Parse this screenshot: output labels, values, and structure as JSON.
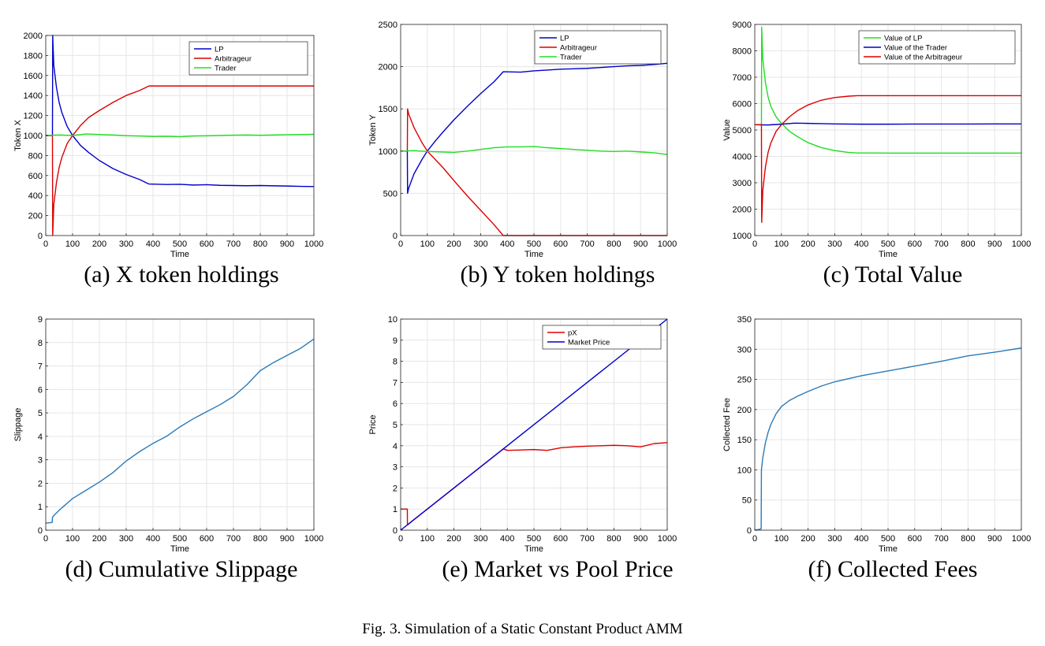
{
  "figure_caption": "Fig. 3.  Simulation of a Static Constant Product AMM",
  "chart_data": [
    {
      "id": "a",
      "caption": "(a) X token holdings",
      "type": "line",
      "xlabel": "Time",
      "ylabel": "Token X",
      "xlim": [
        0,
        1000
      ],
      "ylim": [
        0,
        2000
      ],
      "xticks": [
        0,
        100,
        200,
        300,
        400,
        500,
        600,
        700,
        800,
        900,
        1000
      ],
      "yticks": [
        0,
        200,
        400,
        600,
        800,
        1000,
        1200,
        1400,
        1600,
        1800,
        2000
      ],
      "grid": true,
      "legend_position": "top-right",
      "series": [
        {
          "name": "LP",
          "color": "#0000cc",
          "x": [
            0,
            25,
            26,
            30,
            40,
            50,
            60,
            80,
            100,
            130,
            160,
            200,
            250,
            300,
            350,
            385,
            450,
            500,
            550,
            600,
            650,
            700,
            750,
            800,
            850,
            900,
            950,
            1000
          ],
          "y": [
            1000,
            1000,
            2000,
            1700,
            1480,
            1330,
            1230,
            1090,
            1000,
            900,
            830,
            750,
            670,
            610,
            560,
            515,
            510,
            512,
            505,
            508,
            502,
            500,
            498,
            500,
            497,
            495,
            492,
            490
          ]
        },
        {
          "name": "Arbitrageur",
          "color": "#dd0000",
          "x": [
            0,
            25,
            26,
            30,
            40,
            50,
            60,
            80,
            100,
            130,
            160,
            200,
            250,
            300,
            350,
            385,
            450,
            500,
            600,
            700,
            800,
            900,
            1000
          ],
          "y": [
            1000,
            1000,
            0,
            310,
            530,
            680,
            780,
            920,
            1000,
            1100,
            1180,
            1250,
            1330,
            1400,
            1450,
            1495,
            1495,
            1495,
            1495,
            1495,
            1495,
            1495,
            1495
          ]
        },
        {
          "name": "Trader",
          "color": "#22dd22",
          "x": [
            0,
            50,
            100,
            150,
            200,
            250,
            300,
            350,
            400,
            450,
            500,
            550,
            600,
            650,
            700,
            750,
            800,
            850,
            900,
            950,
            1000
          ],
          "y": [
            1000,
            1005,
            1000,
            1015,
            1010,
            1005,
            998,
            995,
            990,
            992,
            988,
            995,
            997,
            1000,
            1003,
            1005,
            1002,
            1005,
            1008,
            1010,
            1012
          ]
        }
      ]
    },
    {
      "id": "b",
      "caption": "(b) Y token holdings",
      "type": "line",
      "xlabel": "Time",
      "ylabel": "Token Y",
      "xlim": [
        0,
        1000
      ],
      "ylim": [
        0,
        2500
      ],
      "xticks": [
        0,
        100,
        200,
        300,
        400,
        500,
        600,
        700,
        800,
        900,
        1000
      ],
      "yticks": [
        0,
        500,
        1000,
        1500,
        2000,
        2500
      ],
      "grid": true,
      "legend_position": "top-right",
      "series": [
        {
          "name": "LP",
          "color": "#0000cc",
          "x": [
            0,
            25,
            26,
            30,
            50,
            80,
            100,
            130,
            160,
            200,
            250,
            300,
            350,
            385,
            450,
            500,
            550,
            600,
            650,
            700,
            750,
            800,
            850,
            900,
            950,
            1000
          ],
          "y": [
            1000,
            1000,
            500,
            560,
            730,
            900,
            1000,
            1120,
            1230,
            1370,
            1530,
            1680,
            1820,
            1940,
            1935,
            1950,
            1960,
            1970,
            1975,
            1980,
            1990,
            2000,
            2010,
            2015,
            2025,
            2040
          ]
        },
        {
          "name": "Arbitrageur",
          "color": "#dd0000",
          "x": [
            0,
            25,
            26,
            30,
            50,
            80,
            100,
            130,
            160,
            200,
            250,
            300,
            350,
            385,
            400,
            500,
            600,
            700,
            800,
            900,
            1000
          ],
          "y": [
            1000,
            1000,
            1500,
            1440,
            1280,
            1100,
            1000,
            900,
            800,
            650,
            470,
            300,
            130,
            0,
            0,
            0,
            0,
            0,
            0,
            0,
            0
          ]
        },
        {
          "name": "Trader",
          "color": "#22dd22",
          "x": [
            0,
            50,
            100,
            150,
            200,
            250,
            300,
            350,
            400,
            450,
            500,
            550,
            600,
            650,
            700,
            750,
            800,
            850,
            900,
            950,
            1000
          ],
          "y": [
            1000,
            1005,
            995,
            990,
            985,
            1000,
            1020,
            1040,
            1050,
            1050,
            1055,
            1040,
            1030,
            1020,
            1010,
            1000,
            995,
            1000,
            990,
            980,
            960
          ]
        }
      ]
    },
    {
      "id": "c",
      "caption": "(c) Total Value",
      "type": "line",
      "xlabel": "Time",
      "ylabel": "Value",
      "xlim": [
        0,
        1000
      ],
      "ylim": [
        1000,
        9000
      ],
      "xticks": [
        0,
        100,
        200,
        300,
        400,
        500,
        600,
        700,
        800,
        900,
        1000
      ],
      "yticks": [
        1000,
        2000,
        3000,
        4000,
        5000,
        6000,
        7000,
        8000,
        9000
      ],
      "grid": true,
      "legend_position": "top-right",
      "series": [
        {
          "name": "Value of LP",
          "color": "#22dd22",
          "x": [
            0,
            25,
            26,
            30,
            40,
            50,
            60,
            80,
            100,
            130,
            160,
            200,
            250,
            300,
            350,
            385,
            450,
            500,
            600,
            700,
            800,
            900,
            1000
          ],
          "y": [
            5200,
            5200,
            8900,
            7700,
            6800,
            6250,
            5900,
            5500,
            5250,
            4950,
            4750,
            4520,
            4330,
            4220,
            4150,
            4130,
            4130,
            4125,
            4125,
            4125,
            4125,
            4125,
            4125
          ]
        },
        {
          "name": "Value of the Trader",
          "color": "#0000cc",
          "x": [
            0,
            50,
            100,
            150,
            200,
            250,
            300,
            400,
            500,
            600,
            700,
            800,
            900,
            1000
          ],
          "y": [
            5200,
            5190,
            5220,
            5260,
            5250,
            5240,
            5230,
            5220,
            5220,
            5225,
            5225,
            5225,
            5230,
            5230
          ]
        },
        {
          "name": "Value of the Arbitrageur",
          "color": "#dd0000",
          "x": [
            0,
            25,
            26,
            30,
            40,
            50,
            60,
            80,
            100,
            130,
            160,
            200,
            250,
            300,
            350,
            385,
            450,
            500,
            600,
            700,
            800,
            900,
            1000
          ],
          "y": [
            5200,
            5200,
            1500,
            2700,
            3600,
            4150,
            4500,
            4950,
            5200,
            5500,
            5730,
            5950,
            6130,
            6230,
            6280,
            6300,
            6300,
            6300,
            6300,
            6300,
            6300,
            6300,
            6300
          ]
        }
      ]
    },
    {
      "id": "d",
      "caption": "(d) Cumulative Slippage",
      "type": "line",
      "xlabel": "Time",
      "ylabel": "Slippage",
      "xlim": [
        0,
        1000
      ],
      "ylim": [
        0,
        9
      ],
      "xticks": [
        0,
        100,
        200,
        300,
        400,
        500,
        600,
        700,
        800,
        900,
        1000
      ],
      "yticks": [
        0,
        1,
        2,
        3,
        4,
        5,
        6,
        7,
        8,
        9
      ],
      "grid": true,
      "series": [
        {
          "name": "",
          "color": "#2a7ab8",
          "x": [
            0,
            24,
            25,
            30,
            50,
            100,
            150,
            200,
            250,
            300,
            350,
            400,
            450,
            500,
            550,
            600,
            650,
            700,
            750,
            800,
            850,
            900,
            950,
            1000
          ],
          "y": [
            0.3,
            0.33,
            0.55,
            0.62,
            0.85,
            1.35,
            1.7,
            2.05,
            2.45,
            2.95,
            3.35,
            3.7,
            4.0,
            4.4,
            4.75,
            5.05,
            5.35,
            5.7,
            6.2,
            6.8,
            7.15,
            7.45,
            7.75,
            8.15
          ]
        }
      ]
    },
    {
      "id": "e",
      "caption": "(e) Market vs Pool Price",
      "type": "line",
      "xlabel": "Time",
      "ylabel": "Price",
      "xlim": [
        0,
        1000
      ],
      "ylim": [
        0,
        10
      ],
      "xticks": [
        0,
        100,
        200,
        300,
        400,
        500,
        600,
        700,
        800,
        900,
        1000
      ],
      "yticks": [
        0,
        1,
        2,
        3,
        4,
        5,
        6,
        7,
        8,
        9,
        10
      ],
      "grid": true,
      "legend_position": "top-right",
      "series": [
        {
          "name": "pX",
          "color": "#dd0000",
          "x": [
            0,
            25,
            25.5,
            50,
            100,
            150,
            200,
            250,
            300,
            350,
            385,
            400,
            450,
            500,
            550,
            600,
            650,
            700,
            750,
            800,
            850,
            900,
            950,
            1000
          ],
          "y": [
            1.0,
            1.0,
            0.25,
            0.5,
            1.0,
            1.5,
            2.0,
            2.5,
            3.0,
            3.5,
            3.85,
            3.78,
            3.8,
            3.82,
            3.78,
            3.9,
            3.95,
            3.98,
            4.0,
            4.02,
            4.0,
            3.95,
            4.1,
            4.15
          ]
        },
        {
          "name": "Market Price",
          "color": "#0000cc",
          "x": [
            0,
            1000
          ],
          "y": [
            0,
            10
          ]
        }
      ]
    },
    {
      "id": "f",
      "caption": "(f) Collected Fees",
      "type": "line",
      "xlabel": "Time",
      "ylabel": "Collected Fee",
      "xlim": [
        0,
        1000
      ],
      "ylim": [
        0,
        350
      ],
      "xticks": [
        0,
        100,
        200,
        300,
        400,
        500,
        600,
        700,
        800,
        900,
        1000
      ],
      "yticks": [
        0,
        50,
        100,
        150,
        200,
        250,
        300,
        350
      ],
      "grid": true,
      "series": [
        {
          "name": "",
          "color": "#2a7ab8",
          "x": [
            0,
            24,
            25,
            30,
            40,
            50,
            60,
            80,
            100,
            130,
            160,
            200,
            250,
            300,
            400,
            500,
            600,
            700,
            800,
            900,
            1000
          ],
          "y": [
            0,
            2,
            100,
            120,
            145,
            162,
            175,
            193,
            205,
            215,
            222,
            230,
            239,
            246,
            256,
            264,
            272,
            280,
            289,
            295,
            302
          ]
        }
      ]
    }
  ]
}
